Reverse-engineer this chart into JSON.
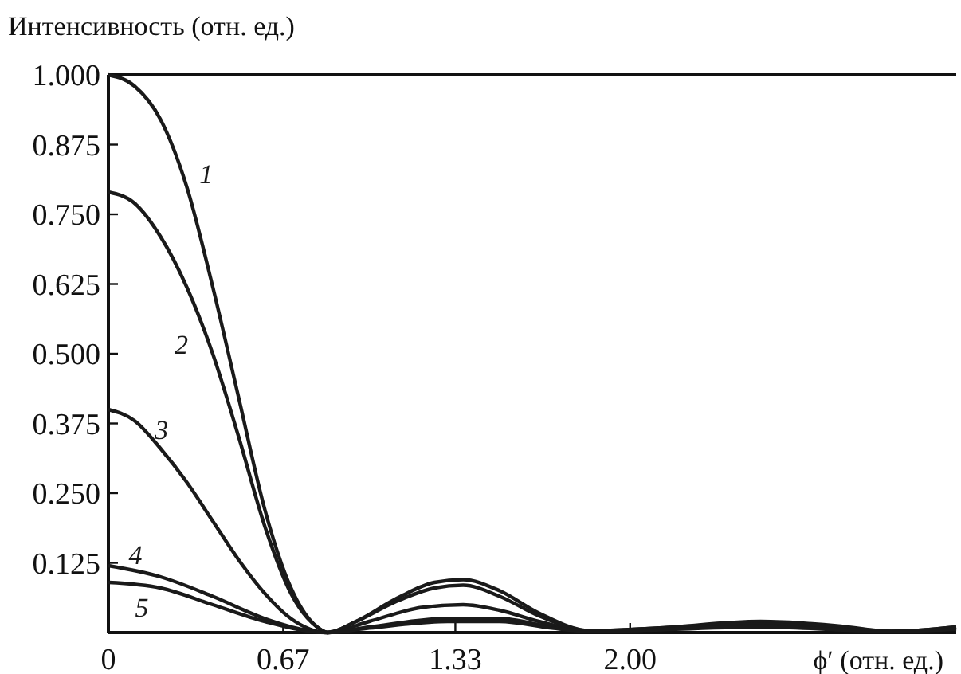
{
  "chart_data": {
    "type": "line",
    "ylabel": "Интенсивность (отн. ед.)",
    "xlabel": "ϕ′ (отн. ед.)",
    "xlim": [
      0,
      3.25
    ],
    "ylim": [
      0,
      1
    ],
    "xticks": [
      0,
      0.67,
      1.33,
      {
        "value": 2,
        "label": "2.00"
      }
    ],
    "yticks": [
      {
        "value": 0.125,
        "label": "0.125"
      },
      {
        "value": 0.25,
        "label": "0.250"
      },
      {
        "value": 0.375,
        "label": "0.375"
      },
      {
        "value": 0.5,
        "label": "0.500"
      },
      {
        "value": 0.625,
        "label": "0.625"
      },
      {
        "value": 0.75,
        "label": "0.750"
      },
      {
        "value": 0.875,
        "label": "0.875"
      },
      {
        "value": 1,
        "label": "1.000"
      }
    ],
    "grid": false,
    "legend": false,
    "marker": "none",
    "line_style": "solid",
    "series": [
      {
        "name": "1",
        "color": "#1a1a1a",
        "x": [
          0,
          0.1,
          0.2,
          0.3,
          0.4,
          0.5,
          0.6,
          0.7,
          0.8,
          0.84,
          0.95,
          1.1,
          1.25,
          1.36,
          1.5,
          1.65,
          1.85,
          2.1,
          2.5,
          2.8,
          3.0,
          3.25
        ],
        "values": [
          1.0,
          0.98,
          0.92,
          0.8,
          0.62,
          0.42,
          0.22,
          0.08,
          0.01,
          0,
          0.02,
          0.06,
          0.09,
          0.095,
          0.075,
          0.035,
          0.003,
          0.008,
          0.02,
          0.012,
          0.002,
          0.01
        ]
      },
      {
        "name": "2",
        "color": "#1a1a1a",
        "x": [
          0,
          0.1,
          0.2,
          0.3,
          0.4,
          0.5,
          0.6,
          0.7,
          0.8,
          0.84,
          0.95,
          1.1,
          1.25,
          1.36,
          1.5,
          1.65,
          1.85,
          2.1,
          2.5,
          2.8,
          3.0,
          3.25
        ],
        "values": [
          0.79,
          0.77,
          0.71,
          0.62,
          0.5,
          0.35,
          0.19,
          0.07,
          0.01,
          0,
          0.02,
          0.055,
          0.08,
          0.085,
          0.065,
          0.03,
          0.003,
          0.008,
          0.018,
          0.01,
          0.002,
          0.01
        ]
      },
      {
        "name": "3",
        "color": "#1a1a1a",
        "x": [
          0,
          0.1,
          0.2,
          0.3,
          0.4,
          0.5,
          0.6,
          0.7,
          0.84,
          1.0,
          1.2,
          1.36,
          1.5,
          1.65,
          1.85,
          2.5,
          3.0,
          3.25
        ],
        "values": [
          0.4,
          0.38,
          0.33,
          0.27,
          0.2,
          0.13,
          0.07,
          0.025,
          0,
          0.02,
          0.045,
          0.05,
          0.04,
          0.02,
          0.003,
          0.015,
          0.002,
          0.008
        ]
      },
      {
        "name": "4",
        "color": "#1a1a1a",
        "x": [
          0,
          0.2,
          0.4,
          0.6,
          0.75,
          0.84,
          1.0,
          1.3,
          1.5,
          1.7,
          1.85,
          2.5,
          3.0,
          3.25
        ],
        "values": [
          0.12,
          0.1,
          0.065,
          0.025,
          0.005,
          0,
          0.01,
          0.025,
          0.025,
          0.01,
          0.002,
          0.012,
          0.002,
          0.008
        ]
      },
      {
        "name": "5",
        "color": "#1a1a1a",
        "x": [
          0,
          0.2,
          0.4,
          0.6,
          0.84,
          1.0,
          1.3,
          1.5,
          1.7,
          1.85,
          2.5,
          3.0,
          3.25
        ],
        "values": [
          0.09,
          0.08,
          0.05,
          0.02,
          0,
          0.008,
          0.02,
          0.02,
          0.008,
          0.002,
          0.01,
          0.002,
          0.006
        ]
      }
    ]
  }
}
